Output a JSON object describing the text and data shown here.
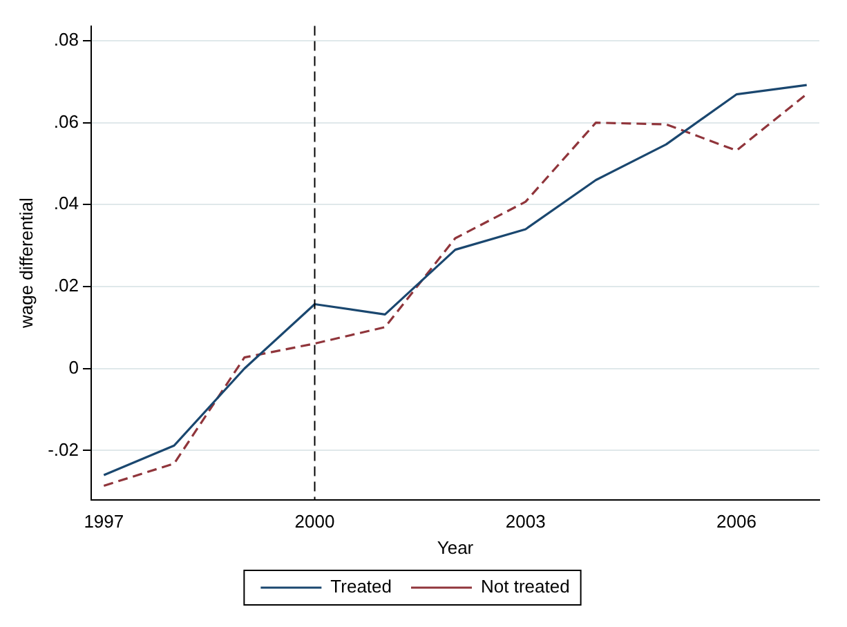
{
  "chart_data": {
    "type": "line",
    "xlabel": "Year",
    "ylabel": "wage differential",
    "x": [
      1997,
      1998,
      1999,
      2000,
      2001,
      2002,
      2003,
      2004,
      2005,
      2006,
      2007
    ],
    "series": [
      {
        "name": "Treated",
        "color": "#1a476f",
        "line_style": "solid",
        "values": [
          -0.026,
          -0.0188,
          0.0,
          0.0157,
          0.0132,
          0.029,
          0.034,
          0.046,
          0.0547,
          0.0669,
          0.0692
        ]
      },
      {
        "name": "Not treated",
        "color": "#90353b",
        "line_style": "dashed",
        "values": [
          -0.0286,
          -0.0232,
          0.0027,
          0.0061,
          0.0101,
          0.0318,
          0.0407,
          0.06,
          0.0596,
          0.0532,
          0.067
        ]
      }
    ],
    "xlim": [
      1996.82,
      2007.18
    ],
    "xticks": [
      1997,
      2000,
      2003,
      2006
    ],
    "ylim": [
      -0.032,
      0.0836
    ],
    "yticks": [
      {
        "value": -0.02,
        "label": "-.02"
      },
      {
        "value": 0,
        "label": "0"
      },
      {
        "value": 0.02,
        "label": ".02"
      },
      {
        "value": 0.04,
        "label": ".04"
      },
      {
        "value": 0.06,
        "label": ".06"
      },
      {
        "value": 0.08,
        "label": ".08"
      }
    ],
    "ref_lines": [
      {
        "axis": "x",
        "value": 2000,
        "color": "#000000",
        "line_style": "dashed"
      }
    ],
    "grid": "y",
    "legend": "bottom",
    "marker": "none"
  }
}
